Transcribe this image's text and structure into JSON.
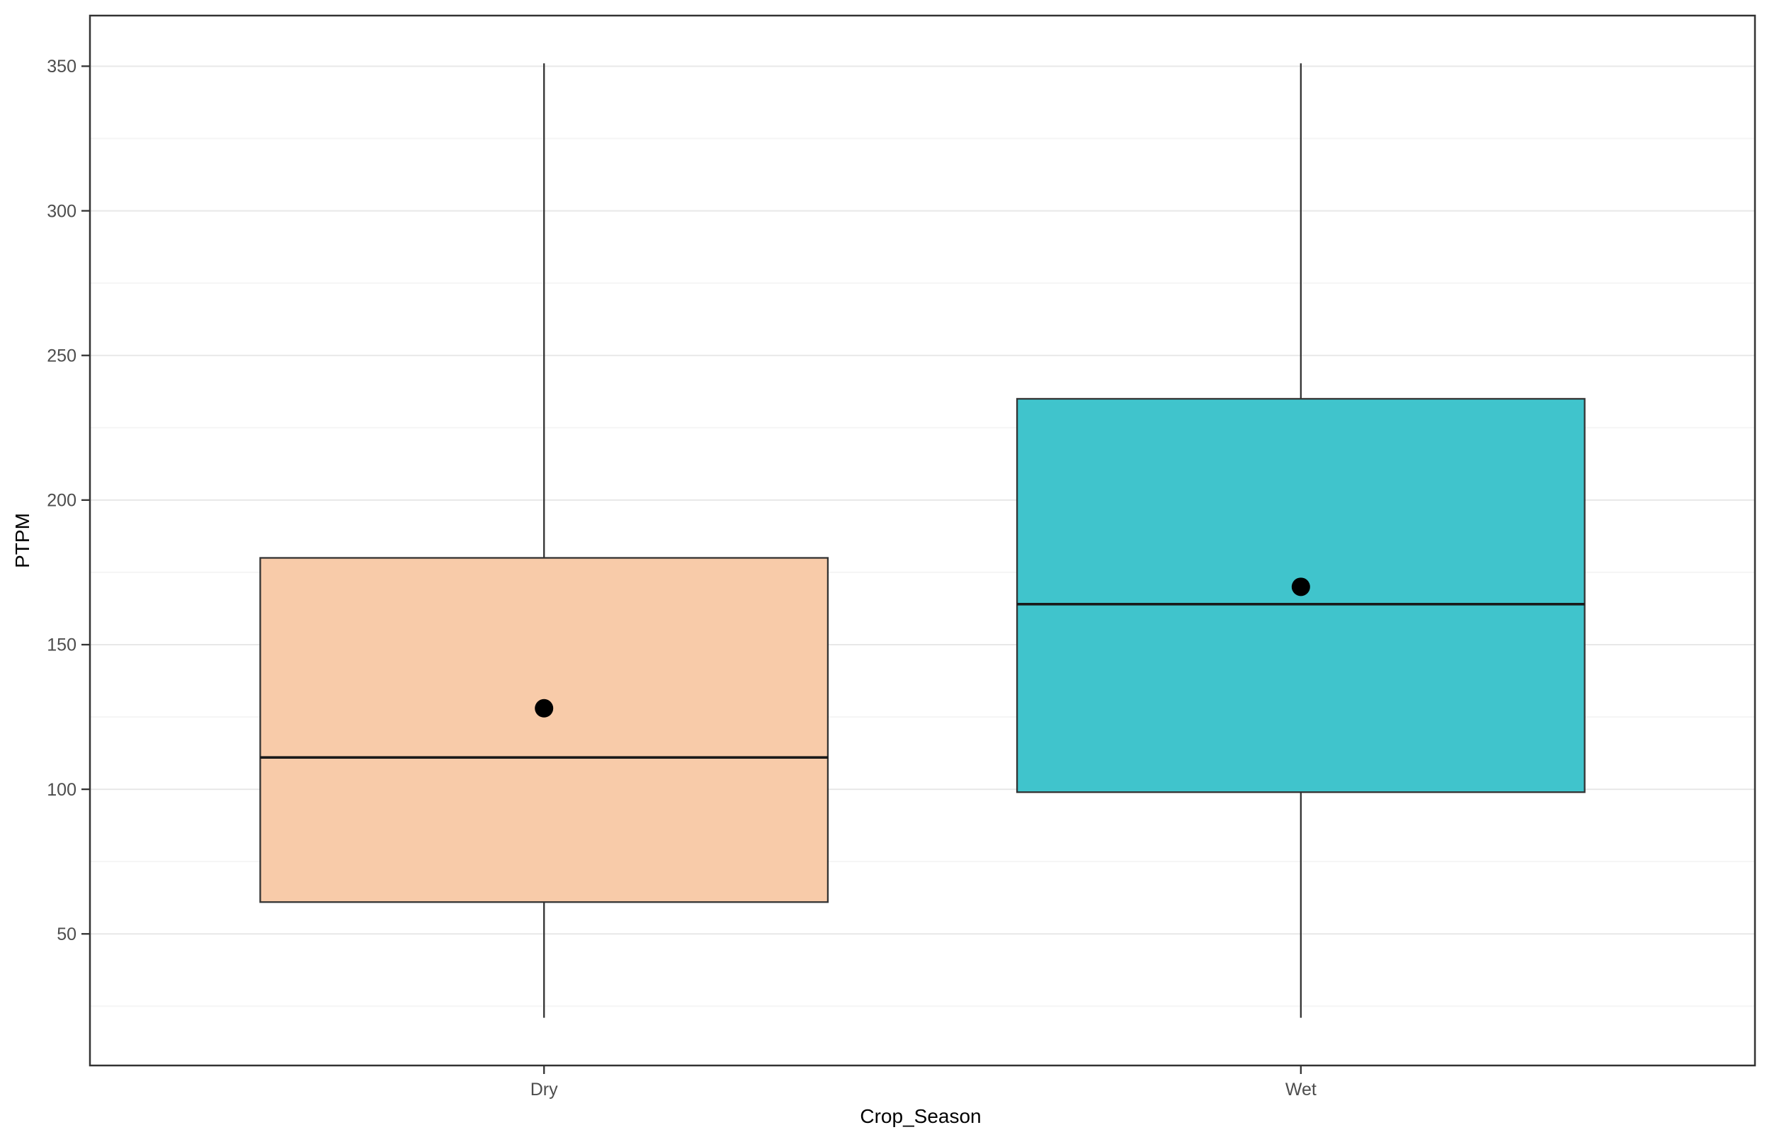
{
  "chart_data": {
    "type": "boxplot",
    "title": "",
    "xlabel": "Crop_Season",
    "ylabel": "PTPM",
    "categories": [
      "Dry",
      "Wet"
    ],
    "groups": [
      {
        "label": "Dry",
        "min": 21,
        "q1": 61,
        "median": 111,
        "q3": 180,
        "max": 351,
        "mean": 128,
        "fill": "#F8CBA9"
      },
      {
        "label": "Wet",
        "min": 21,
        "q1": 99,
        "median": 164,
        "q3": 235,
        "max": 351,
        "mean": 170,
        "fill": "#40C4CC"
      }
    ],
    "y_ticks": [
      50,
      100,
      150,
      200,
      250,
      300,
      350
    ],
    "y_minor_gridlines": [
      25,
      75,
      125,
      175,
      225,
      275,
      325
    ],
    "ylim": [
      4.5,
      367.5
    ],
    "grid": "horizontal gridlines, major and minor, no vertical gridlines",
    "legend": "none",
    "colors": {
      "panel_background": "#ffffff",
      "panel_border": "#333333",
      "grid_major": "#e8e8e8",
      "grid_minor": "#f5f5f5",
      "box_stroke": "#333333",
      "median_line": "#1a1a1a",
      "mean_point": "#000000",
      "tick_label": "#4d4d4d",
      "axis_title": "#000000"
    }
  }
}
